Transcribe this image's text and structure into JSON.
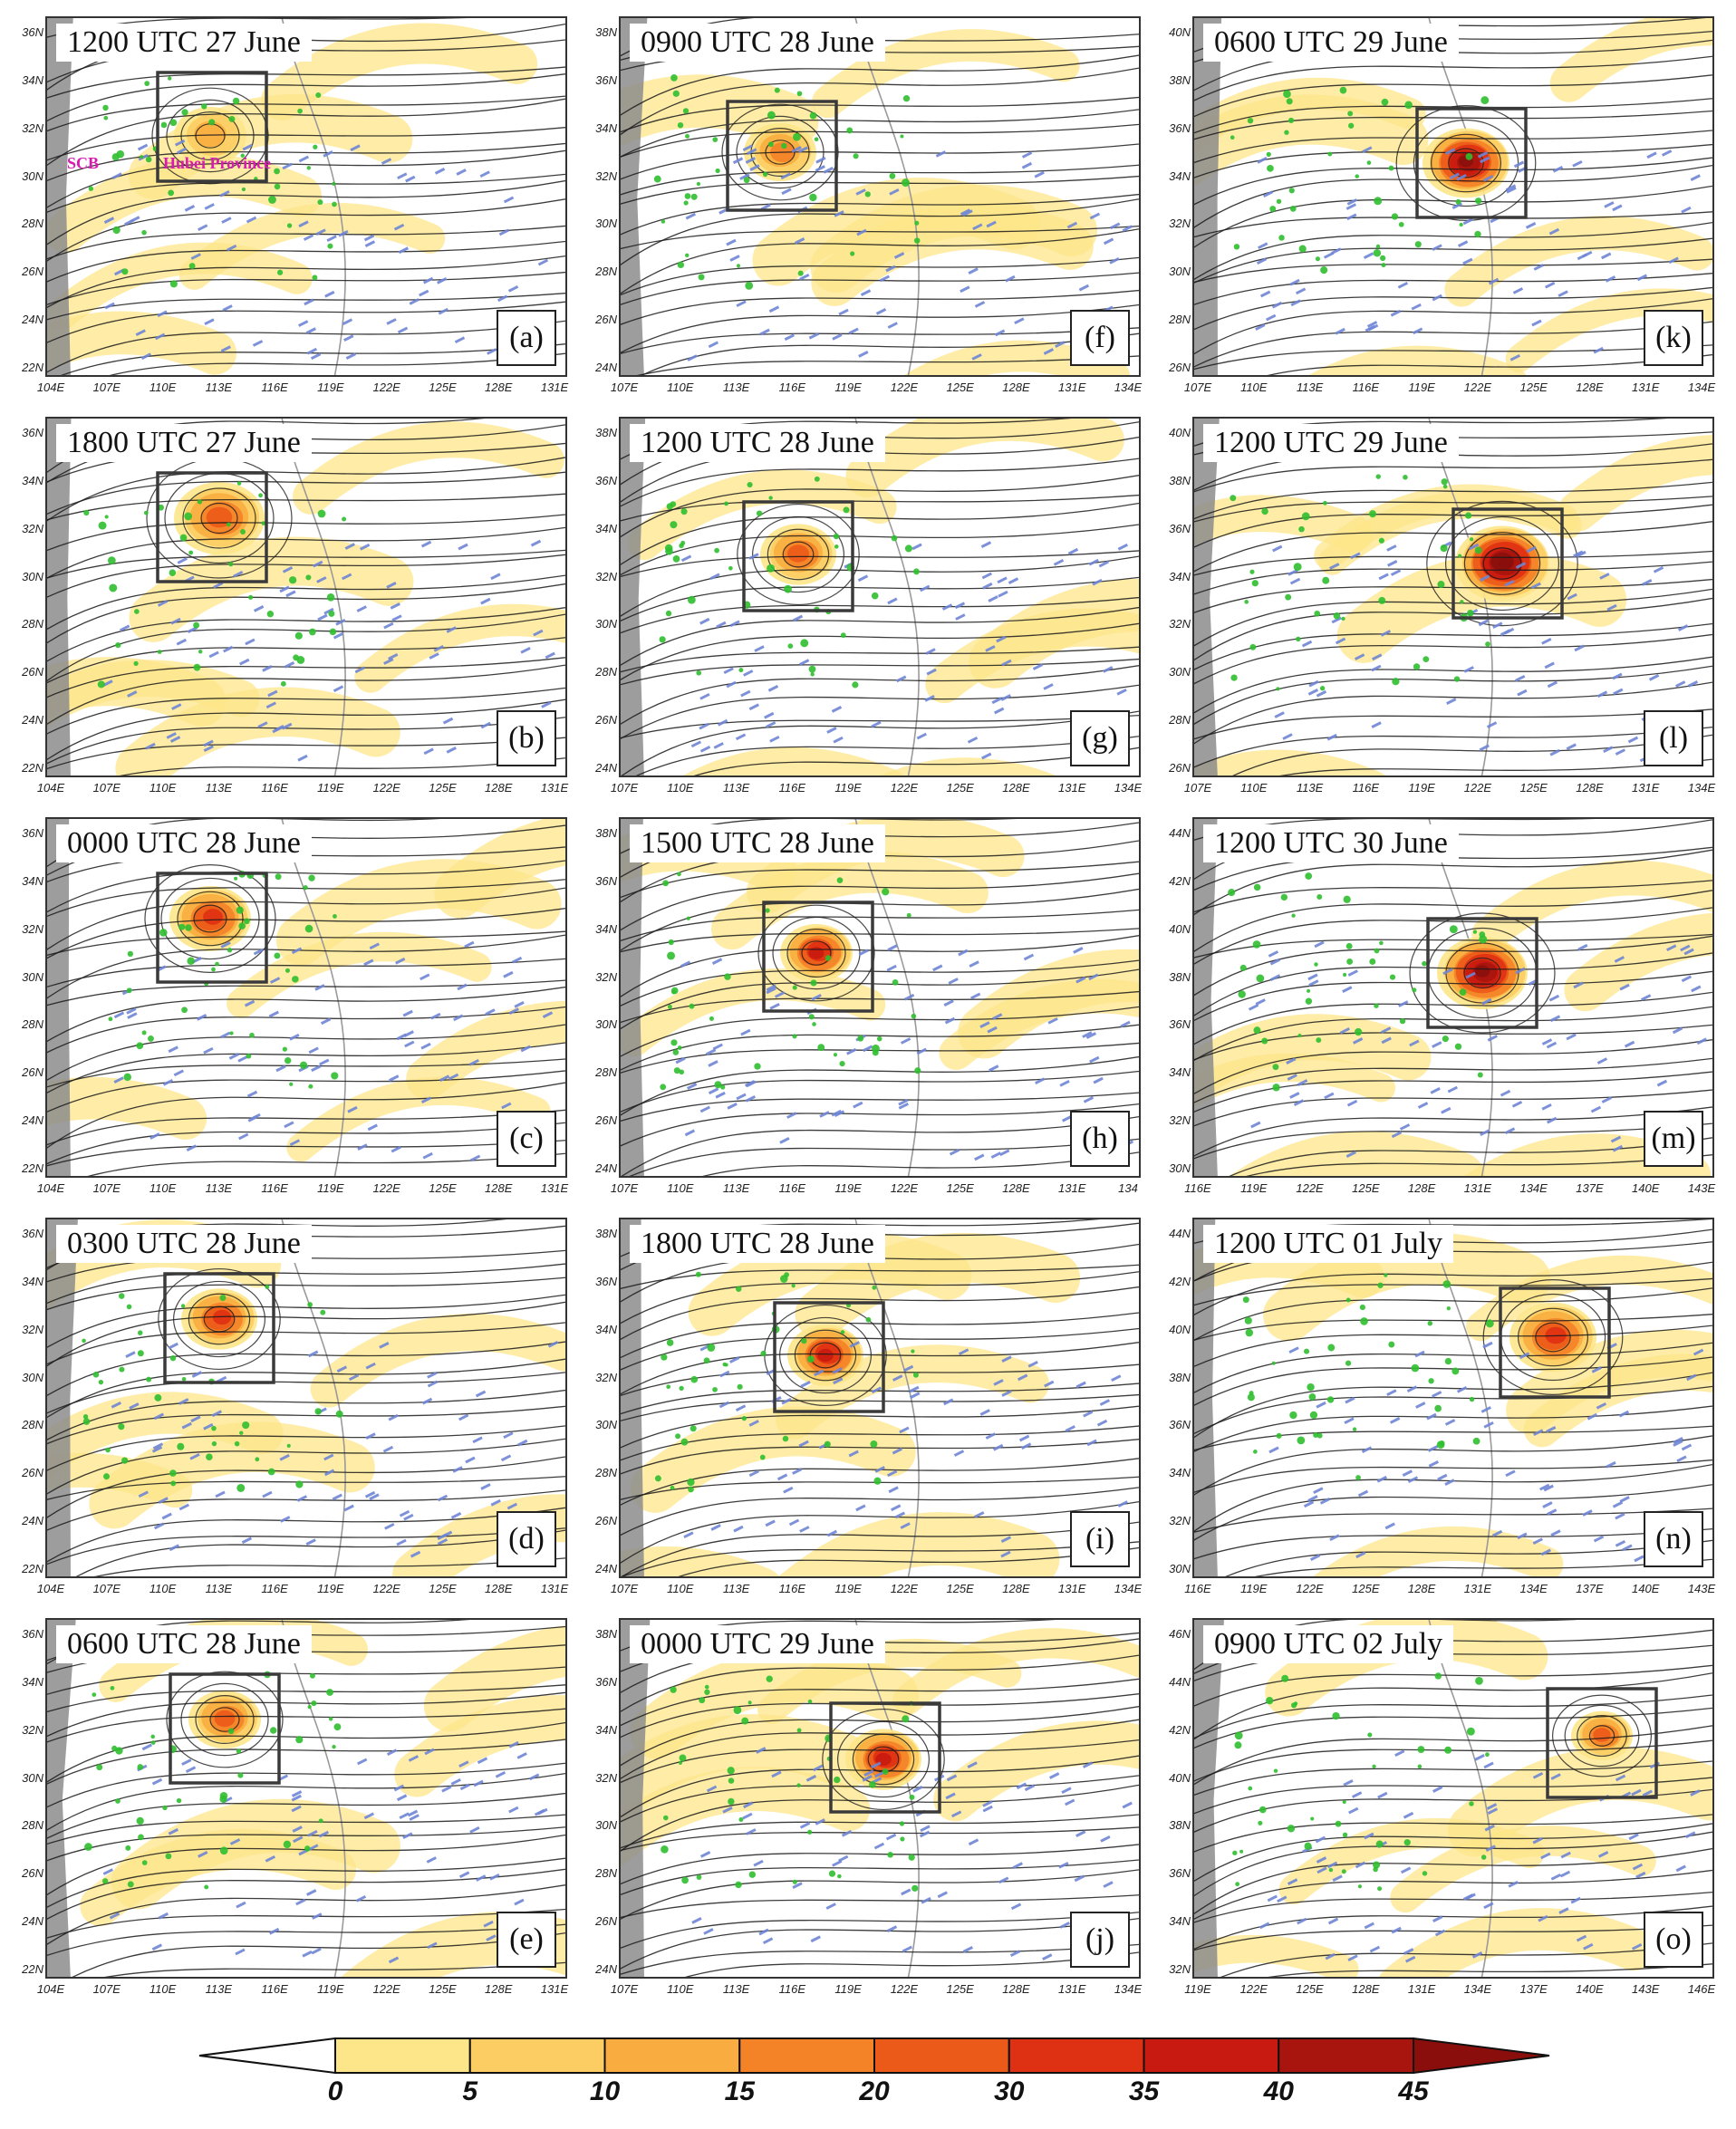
{
  "colors": {
    "streamline": "#1a1a1a",
    "precip": "#2fbf2f",
    "wind_barbs": "#6f86d6",
    "box": "#3a3a3a",
    "coast": "#9a9a9a",
    "land_shade": "#8c8c8c",
    "annotation": "#d81cb2"
  },
  "panels": [
    {
      "id": "a",
      "time": "1200 UTC 27 June",
      "letter": "(a)",
      "lat_ticks": [
        "36N",
        "34N",
        "32N",
        "30N",
        "28N",
        "26N",
        "24N",
        "22N"
      ],
      "lon_ticks": [
        "104E",
        "107E",
        "110E",
        "113E",
        "116E",
        "119E",
        "122E",
        "125E",
        "128E",
        "131E"
      ],
      "annotations": [
        {
          "text": "SCB",
          "name": "scb-label"
        },
        {
          "text": "Hubei Province",
          "name": "hubei-province-label"
        }
      ]
    },
    {
      "id": "b",
      "time": "1800 UTC 27 June",
      "letter": "(b)",
      "lat_ticks": [
        "36N",
        "34N",
        "32N",
        "30N",
        "28N",
        "26N",
        "24N",
        "22N"
      ],
      "lon_ticks": [
        "104E",
        "107E",
        "110E",
        "113E",
        "116E",
        "119E",
        "122E",
        "125E",
        "128E",
        "131E"
      ]
    },
    {
      "id": "c",
      "time": "0000 UTC 28 June",
      "letter": "(c)",
      "lat_ticks": [
        "36N",
        "34N",
        "32N",
        "30N",
        "28N",
        "26N",
        "24N",
        "22N"
      ],
      "lon_ticks": [
        "104E",
        "107E",
        "110E",
        "113E",
        "116E",
        "119E",
        "122E",
        "125E",
        "128E",
        "131E"
      ]
    },
    {
      "id": "d",
      "time": "0300 UTC 28 June",
      "letter": "(d)",
      "lat_ticks": [
        "36N",
        "34N",
        "32N",
        "30N",
        "28N",
        "26N",
        "24N",
        "22N"
      ],
      "lon_ticks": [
        "104E",
        "107E",
        "110E",
        "113E",
        "116E",
        "119E",
        "122E",
        "125E",
        "128E",
        "131E"
      ]
    },
    {
      "id": "e",
      "time": "0600 UTC 28 June",
      "letter": "(e)",
      "lat_ticks": [
        "36N",
        "34N",
        "32N",
        "30N",
        "28N",
        "26N",
        "24N",
        "22N"
      ],
      "lon_ticks": [
        "104E",
        "107E",
        "110E",
        "113E",
        "116E",
        "119E",
        "122E",
        "125E",
        "128E",
        "131E"
      ]
    },
    {
      "id": "f",
      "time": "0900 UTC 28 June",
      "letter": "(f)",
      "lat_ticks": [
        "38N",
        "36N",
        "34N",
        "32N",
        "30N",
        "28N",
        "26N",
        "24N"
      ],
      "lon_ticks": [
        "107E",
        "110E",
        "113E",
        "116E",
        "119E",
        "122E",
        "125E",
        "128E",
        "131E",
        "134E"
      ]
    },
    {
      "id": "g",
      "time": "1200 UTC 28 June",
      "letter": "(g)",
      "lat_ticks": [
        "38N",
        "36N",
        "34N",
        "32N",
        "30N",
        "28N",
        "26N",
        "24N"
      ],
      "lon_ticks": [
        "107E",
        "110E",
        "113E",
        "116E",
        "119E",
        "122E",
        "125E",
        "128E",
        "131E",
        "134E"
      ]
    },
    {
      "id": "h",
      "time": "1500 UTC 28 June",
      "letter": "(h)",
      "lat_ticks": [
        "38N",
        "36N",
        "34N",
        "32N",
        "30N",
        "28N",
        "26N",
        "24N"
      ],
      "lon_ticks": [
        "107E",
        "110E",
        "113E",
        "116E",
        "119E",
        "122E",
        "125E",
        "128E",
        "131E",
        "134"
      ]
    },
    {
      "id": "i",
      "time": "1800 UTC 28 June",
      "letter": "(i)",
      "lat_ticks": [
        "38N",
        "36N",
        "34N",
        "32N",
        "30N",
        "28N",
        "26N",
        "24N"
      ],
      "lon_ticks": [
        "107E",
        "110E",
        "113E",
        "116E",
        "119E",
        "122E",
        "125E",
        "128E",
        "131E",
        "134E"
      ]
    },
    {
      "id": "j",
      "time": "0000 UTC 29 June",
      "letter": "(j)",
      "lat_ticks": [
        "38N",
        "36N",
        "34N",
        "32N",
        "30N",
        "28N",
        "26N",
        "24N"
      ],
      "lon_ticks": [
        "107E",
        "110E",
        "113E",
        "116E",
        "119E",
        "122E",
        "125E",
        "128E",
        "131E",
        "134E"
      ]
    },
    {
      "id": "k",
      "time": "0600 UTC 29 June",
      "letter": "(k)",
      "lat_ticks": [
        "40N",
        "38N",
        "36N",
        "34N",
        "32N",
        "30N",
        "28N",
        "26N"
      ],
      "lon_ticks": [
        "107E",
        "110E",
        "113E",
        "116E",
        "119E",
        "122E",
        "125E",
        "128E",
        "131E",
        "134E"
      ]
    },
    {
      "id": "l",
      "time": "1200 UTC 29 June",
      "letter": "(l)",
      "lat_ticks": [
        "40N",
        "38N",
        "36N",
        "34N",
        "32N",
        "30N",
        "28N",
        "26N"
      ],
      "lon_ticks": [
        "107E",
        "110E",
        "113E",
        "116E",
        "119E",
        "122E",
        "125E",
        "128E",
        "131E",
        "134E"
      ]
    },
    {
      "id": "m",
      "time": "1200 UTC 30 June",
      "letter": "(m)",
      "lat_ticks": [
        "44N",
        "42N",
        "40N",
        "38N",
        "36N",
        "34N",
        "32N",
        "30N"
      ],
      "lon_ticks": [
        "116E",
        "119E",
        "122E",
        "125E",
        "128E",
        "131E",
        "134E",
        "137E",
        "140E",
        "143E"
      ]
    },
    {
      "id": "n",
      "time": "1200 UTC 01 July",
      "letter": "(n)",
      "lat_ticks": [
        "44N",
        "42N",
        "40N",
        "38N",
        "36N",
        "34N",
        "32N",
        "30N"
      ],
      "lon_ticks": [
        "116E",
        "119E",
        "122E",
        "125E",
        "128E",
        "131E",
        "134E",
        "137E",
        "140E",
        "143E"
      ]
    },
    {
      "id": "o",
      "time": "0900 UTC 02 July",
      "letter": "(o)",
      "lat_ticks": [
        "46N",
        "44N",
        "42N",
        "40N",
        "38N",
        "36N",
        "34N",
        "32N"
      ],
      "lon_ticks": [
        "119E",
        "122E",
        "125E",
        "128E",
        "131E",
        "134E",
        "137E",
        "140E",
        "143E",
        "146E"
      ]
    }
  ],
  "colorbar": {
    "ticks": [
      "0",
      "5",
      "10",
      "15",
      "20",
      "30",
      "35",
      "40",
      "45"
    ],
    "colors": [
      "#fff6b0",
      "#fde58a",
      "#fccd62",
      "#f9ad40",
      "#f48328",
      "#ec5a1a",
      "#de3012",
      "#c81a10",
      "#a8140e",
      "#8a0f0c"
    ]
  }
}
